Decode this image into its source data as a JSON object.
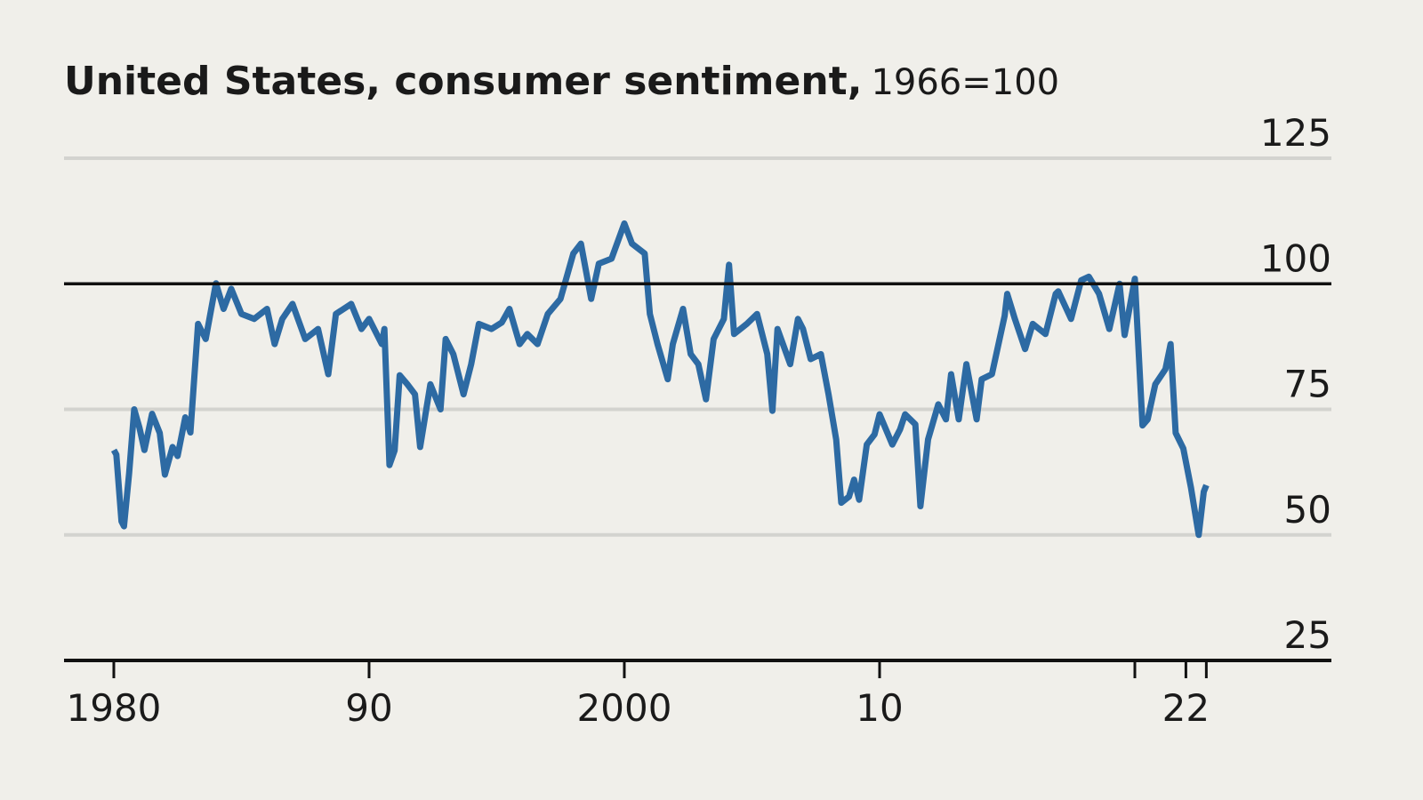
{
  "chart_data": {
    "type": "line",
    "title": "United States, consumer sentiment,",
    "subtitle": "1966=100",
    "x": [
      1980.0,
      1980.1,
      1980.3,
      1980.4,
      1980.6,
      1980.8,
      1981.0,
      1981.2,
      1981.5,
      1981.8,
      1982.0,
      1982.3,
      1982.5,
      1982.8,
      1983.0,
      1983.3,
      1983.6,
      1984.0,
      1984.3,
      1984.6,
      1985.0,
      1985.5,
      1986.0,
      1986.3,
      1986.6,
      1987.0,
      1987.5,
      1988.0,
      1988.4,
      1988.7,
      1989.3,
      1989.7,
      1990.0,
      1990.5,
      1990.6,
      1990.8,
      1991.0,
      1991.2,
      1991.5,
      1991.8,
      1992.0,
      1992.4,
      1992.8,
      1993.0,
      1993.3,
      1993.7,
      1994.0,
      1994.3,
      1994.8,
      1995.2,
      1995.5,
      1995.9,
      1996.2,
      1996.6,
      1997.0,
      1997.5,
      1998.0,
      1998.3,
      1998.7,
      1999.0,
      1999.5,
      2000.0,
      2000.3,
      2000.8,
      2001.0,
      2001.3,
      2001.7,
      2001.9,
      2002.3,
      2002.6,
      2002.9,
      2003.2,
      2003.5,
      2003.9,
      2004.1,
      2004.3,
      2004.8,
      2005.2,
      2005.6,
      2005.8,
      2006.0,
      2006.5,
      2006.8,
      2007.0,
      2007.3,
      2007.7,
      2008.0,
      2008.3,
      2008.5,
      2008.8,
      2009.0,
      2009.2,
      2009.5,
      2009.8,
      2010.0,
      2010.5,
      2010.8,
      2011.0,
      2011.4,
      2011.6,
      2011.9,
      2012.3,
      2012.6,
      2012.8,
      2013.1,
      2013.4,
      2013.8,
      2014.0,
      2014.4,
      2014.9,
      2015.0,
      2015.3,
      2015.7,
      2016.0,
      2016.5,
      2016.9,
      2017.0,
      2017.5,
      2017.9,
      2018.2,
      2018.6,
      2019.0,
      2019.4,
      2019.6,
      2020.0,
      2020.3,
      2020.5,
      2020.8,
      2021.2,
      2021.4,
      2021.6,
      2021.9,
      2022.2,
      2022.5,
      2022.7,
      2022.8
    ],
    "values": [
      66.9,
      66.0,
      52.7,
      51.7,
      62.3,
      75.0,
      71.4,
      66.9,
      74.1,
      70.3,
      62.0,
      67.5,
      65.7,
      73.4,
      70.4,
      92.0,
      89.0,
      100.1,
      95.0,
      99.0,
      94.0,
      93.0,
      95.0,
      88.0,
      93.0,
      96.0,
      89.0,
      91.0,
      82.0,
      94.0,
      96.0,
      91.0,
      93.0,
      88.0,
      91.0,
      63.9,
      66.8,
      81.8,
      80.0,
      78.0,
      67.5,
      80.0,
      75.0,
      89.0,
      86.0,
      78.0,
      84.0,
      92.0,
      91.0,
      92.3,
      95.0,
      88.0,
      90.0,
      88.0,
      94.0,
      97.0,
      106.0,
      108.0,
      97.0,
      104.0,
      105.0,
      112.0,
      108.0,
      106.0,
      94.0,
      88.0,
      81.0,
      88.0,
      95.0,
      86.0,
      84.0,
      77.0,
      89.0,
      93.0,
      103.8,
      90.0,
      92.0,
      94.0,
      86.0,
      74.7,
      91.0,
      84.0,
      93.0,
      91.0,
      85.0,
      86.0,
      78.0,
      69.0,
      56.4,
      57.6,
      61.0,
      57.0,
      68.0,
      70.0,
      74.0,
      68.0,
      71.0,
      74.0,
      72.0,
      55.7,
      69.0,
      76.0,
      73.0,
      82.0,
      73.0,
      84.0,
      73.0,
      81.0,
      82.0,
      93.6,
      98.0,
      93.0,
      87.0,
      92.0,
      90.0,
      98.0,
      98.5,
      93.0,
      100.7,
      101.4,
      98.0,
      91.0,
      100.0,
      89.8,
      101.0,
      71.8,
      73.0,
      80.0,
      83.0,
      88.0,
      70.3,
      67.2,
      59.4,
      50.0,
      58.6,
      59.9
    ],
    "color": "#2d6aa3",
    "xlim": [
      1978.05,
      2027.7
    ],
    "xticks": [
      1980,
      {
        "value": 1990,
        "label": "90"
      },
      2000,
      {
        "value": 2010,
        "label": "10"
      },
      {
        "value": 2022,
        "label": "22"
      }
    ],
    "xticks_unlabeled": [
      2020,
      2022.8
    ],
    "ylim": [
      25,
      125
    ],
    "yticks": [
      25,
      50,
      75,
      100,
      125
    ],
    "reference_line": 100,
    "grid": true
  }
}
